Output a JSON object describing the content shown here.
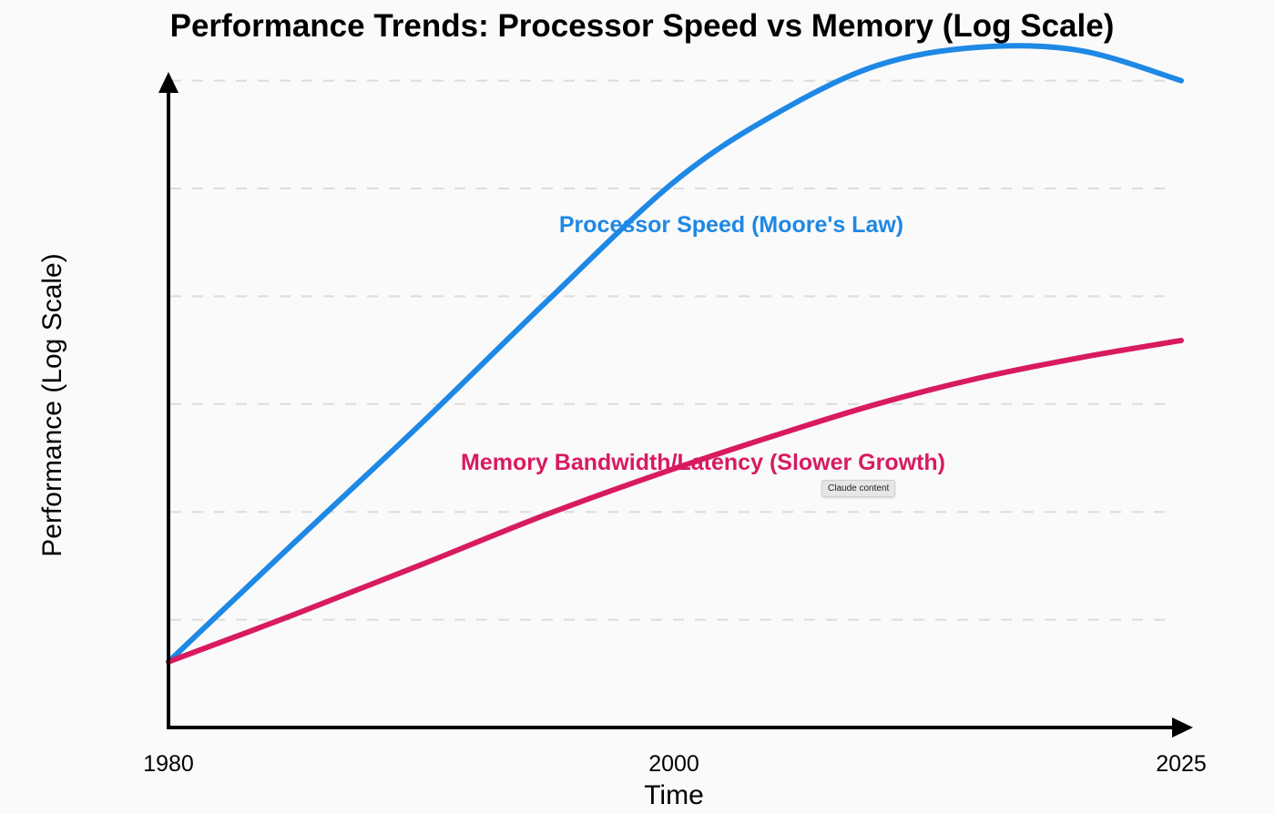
{
  "chart_data": {
    "type": "line",
    "title": "Performance Trends: Processor Speed vs Memory (Log Scale)",
    "xlabel": "Time",
    "ylabel": "Performance (Log Scale)",
    "x_ticks": [
      1980,
      2000,
      2025
    ],
    "y_scale": "log",
    "y_tick_labels": "none",
    "ylim": [
      0,
      6
    ],
    "grid": "horizontal dashed",
    "x": [
      1980,
      1985,
      1990,
      1995,
      2000,
      2005,
      2010,
      2015,
      2020,
      2025
    ],
    "series": [
      {
        "name": "Processor Speed (Moore's Law)",
        "color": "#1e88e5",
        "values": [
          0.61,
          1.72,
          2.82,
          3.96,
          5.06,
          5.69,
          6.14,
          6.31,
          6.28,
          6.0
        ]
      },
      {
        "name": "Memory Bandwidth/Latency (Slower Growth)",
        "color": "#d81b60",
        "values": [
          0.61,
          1.05,
          1.51,
          1.98,
          2.4,
          2.71,
          3.0,
          3.24,
          3.43,
          3.59
        ]
      }
    ]
  },
  "tooltip": "Claude content"
}
